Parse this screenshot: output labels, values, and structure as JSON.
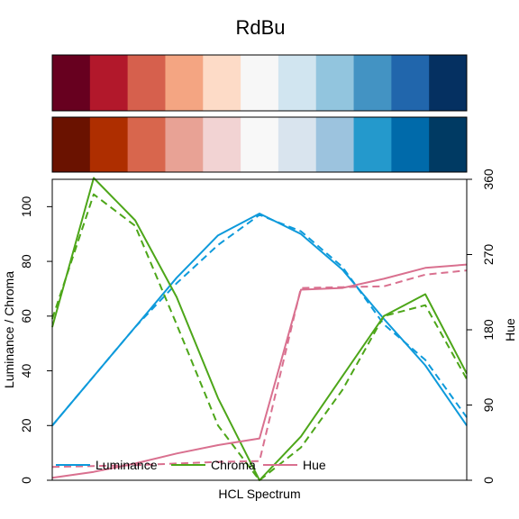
{
  "chart_data": {
    "type": "line",
    "title": "RdBu",
    "xlabel": "HCL Spectrum",
    "ylabel_left": "Luminance / Chroma",
    "ylabel_right": "Hue",
    "ylim_left": [
      0,
      110
    ],
    "ylim_right": [
      0,
      360
    ],
    "yticks_left": [
      "0",
      "20",
      "40",
      "60",
      "80",
      "100"
    ],
    "yticks_right": [
      "0",
      "90",
      "180",
      "270",
      "360"
    ],
    "palette_top": [
      "#67001F",
      "#B2182B",
      "#D6604D",
      "#F4A582",
      "#FDDBC7",
      "#F7F7F7",
      "#D1E5F0",
      "#92C5DE",
      "#4393C3",
      "#2166AC",
      "#053061"
    ],
    "palette_bottom": [
      "#6A1200",
      "#AE2E00",
      "#D8664D",
      "#E8A295",
      "#F2D3D3",
      "#F8F8F8",
      "#D9E4EE",
      "#9CC3DE",
      "#2499CC",
      "#006AAA",
      "#003A63"
    ],
    "x": [
      1,
      2,
      3,
      4,
      5,
      6,
      7,
      8,
      9,
      10,
      11
    ],
    "series": [
      {
        "name": "Luminance",
        "axis": "left",
        "style": "solid",
        "color": "#0E9ADB",
        "values": [
          20,
          38,
          56,
          74,
          89.5,
          97.5,
          90,
          77,
          59,
          42,
          20
        ]
      },
      {
        "name": "Luminance",
        "axis": "left",
        "style": "dashed",
        "color": "#0E9ADB",
        "values": [
          20,
          38,
          56,
          72,
          86,
          97,
          91,
          78,
          57,
          44,
          23
        ]
      },
      {
        "name": "Chroma",
        "axis": "left",
        "style": "solid",
        "color": "#4DA619",
        "values": [
          56,
          110.5,
          95,
          67,
          30,
          0,
          16,
          38,
          60,
          68,
          39
        ]
      },
      {
        "name": "Chroma",
        "axis": "left",
        "style": "dashed",
        "color": "#4DA619",
        "values": [
          59,
          104.5,
          93,
          57,
          20,
          0,
          12,
          33,
          60,
          64,
          37
        ]
      },
      {
        "name": "Hue",
        "axis": "right",
        "style": "solid",
        "color": "#D9708F",
        "values": [
          3,
          10,
          20,
          32,
          42,
          50,
          228,
          230,
          241,
          254,
          258
        ]
      },
      {
        "name": "Hue",
        "axis": "right",
        "style": "dashed",
        "color": "#D9708F",
        "values": [
          16,
          17,
          18,
          20,
          22,
          23,
          230,
          231,
          232,
          246,
          251
        ]
      }
    ],
    "legend": {
      "position": "bottom-left",
      "items": [
        {
          "label": "Luminance",
          "color": "#0E9ADB"
        },
        {
          "label": "Chroma",
          "color": "#4DA619"
        },
        {
          "label": "Hue",
          "color": "#D9708F"
        }
      ]
    }
  }
}
